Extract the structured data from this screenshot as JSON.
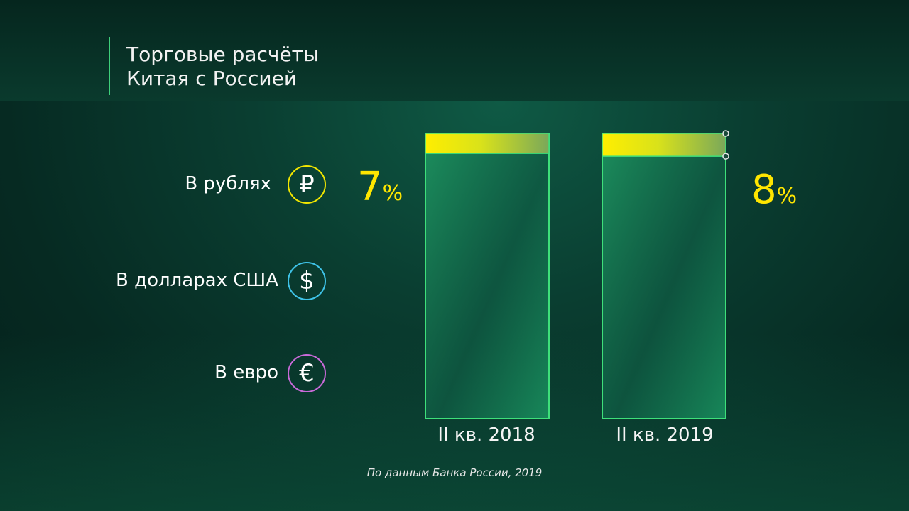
{
  "title": "Торговые расчёты\nКитая с Россией",
  "legend": [
    {
      "label": "В рублях",
      "icon": "ruble-icon",
      "glyph": "₽",
      "color": "#f2e600"
    },
    {
      "label": "В долларах США",
      "icon": "dollar-icon",
      "glyph": "$",
      "color": "#3fc3e8"
    },
    {
      "label": "В евро",
      "icon": "euro-icon",
      "glyph": "€",
      "color": "#c86ad8"
    }
  ],
  "source": "По данным Банка России, 2019",
  "colors": {
    "ruble": "#f2e600",
    "bar_outline": "#3ee07a",
    "bar_fill": "#1a8a5a"
  },
  "chart_data": {
    "type": "bar",
    "stacked": true,
    "categories": [
      "II кв. 2018",
      "II кв. 2019"
    ],
    "series": [
      {
        "name": "В рублях",
        "values": [
          7,
          8
        ]
      }
    ],
    "data_labels": [
      {
        "value": "7",
        "unit": "%"
      },
      {
        "value": "8",
        "unit": "%"
      }
    ],
    "ylim": [
      0,
      100
    ]
  }
}
